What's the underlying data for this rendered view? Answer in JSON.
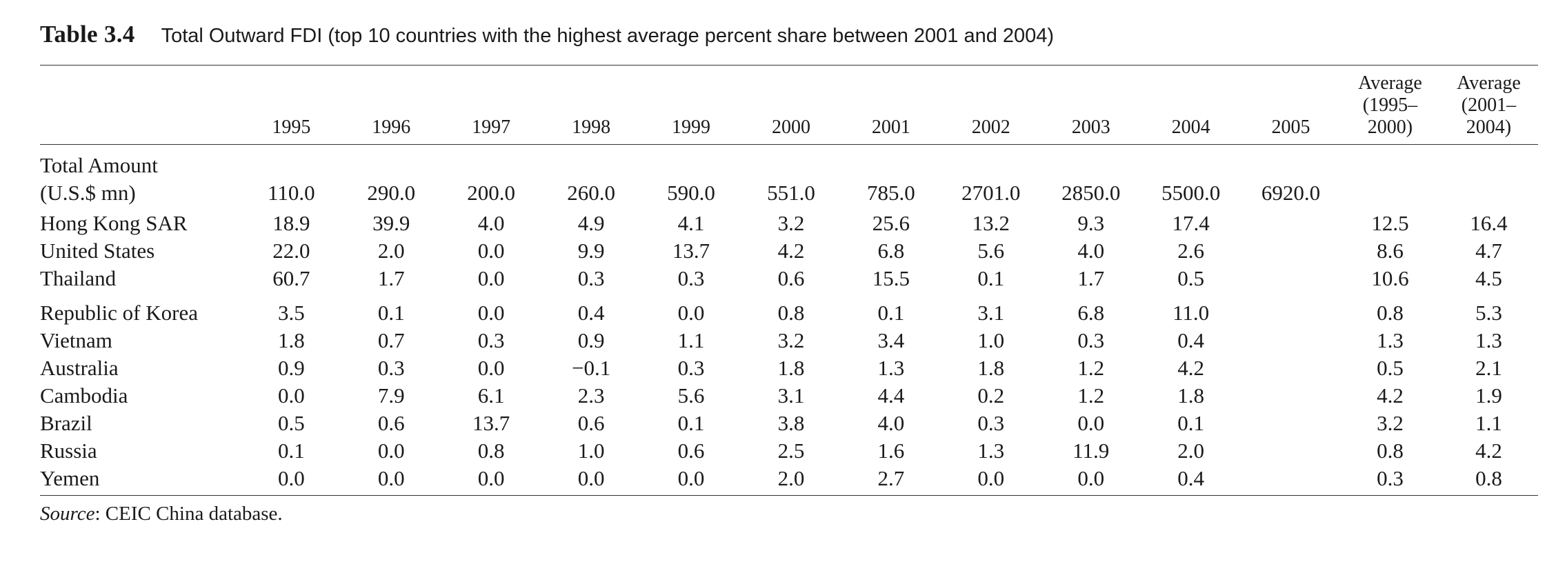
{
  "caption": {
    "label": "Table 3.4",
    "title": "Total Outward FDI (top 10 countries with the highest average percent share between 2001 and 2004)"
  },
  "headers": {
    "years": [
      "1995",
      "1996",
      "1997",
      "1998",
      "1999",
      "2000",
      "2001",
      "2002",
      "2003",
      "2004",
      "2005"
    ],
    "avg1": [
      "Average",
      "(1995–",
      "2000)"
    ],
    "avg2": [
      "Average",
      "(2001–",
      "2004)"
    ]
  },
  "total": {
    "label_line1": "Total Amount",
    "label_line2": "(U.S.$ mn)",
    "values": [
      "110.0",
      "290.0",
      "200.0",
      "260.0",
      "590.0",
      "551.0",
      "785.0",
      "2701.0",
      "2850.0",
      "5500.0",
      "6920.0"
    ]
  },
  "rows": [
    {
      "country": "Hong Kong SAR",
      "values": [
        "18.9",
        "39.9",
        "4.0",
        "4.9",
        "4.1",
        "3.2",
        "25.6",
        "13.2",
        "9.3",
        "17.4",
        ""
      ],
      "avg1": "12.5",
      "avg2": "16.4"
    },
    {
      "country": "United States",
      "values": [
        "22.0",
        "2.0",
        "0.0",
        "9.9",
        "13.7",
        "4.2",
        "6.8",
        "5.6",
        "4.0",
        "2.6",
        ""
      ],
      "avg1": "8.6",
      "avg2": "4.7"
    },
    {
      "country": "Thailand",
      "values": [
        "60.7",
        "1.7",
        "0.0",
        "0.3",
        "0.3",
        "0.6",
        "15.5",
        "0.1",
        "1.7",
        "0.5",
        ""
      ],
      "avg1": "10.6",
      "avg2": "4.5"
    },
    {
      "country": "Republic of Korea",
      "values": [
        "3.5",
        "0.1",
        "0.0",
        "0.4",
        "0.0",
        "0.8",
        "0.1",
        "3.1",
        "6.8",
        "11.0",
        ""
      ],
      "avg1": "0.8",
      "avg2": "5.3"
    },
    {
      "country": "Vietnam",
      "values": [
        "1.8",
        "0.7",
        "0.3",
        "0.9",
        "1.1",
        "3.2",
        "3.4",
        "1.0",
        "0.3",
        "0.4",
        ""
      ],
      "avg1": "1.3",
      "avg2": "1.3"
    },
    {
      "country": "Australia",
      "values": [
        "0.9",
        "0.3",
        "0.0",
        "−0.1",
        "0.3",
        "1.8",
        "1.3",
        "1.8",
        "1.2",
        "4.2",
        ""
      ],
      "avg1": "0.5",
      "avg2": "2.1"
    },
    {
      "country": "Cambodia",
      "values": [
        "0.0",
        "7.9",
        "6.1",
        "2.3",
        "5.6",
        "3.1",
        "4.4",
        "0.2",
        "1.2",
        "1.8",
        ""
      ],
      "avg1": "4.2",
      "avg2": "1.9"
    },
    {
      "country": "Brazil",
      "values": [
        "0.5",
        "0.6",
        "13.7",
        "0.6",
        "0.1",
        "3.8",
        "4.0",
        "0.3",
        "0.0",
        "0.1",
        ""
      ],
      "avg1": "3.2",
      "avg2": "1.1"
    },
    {
      "country": "Russia",
      "values": [
        "0.1",
        "0.0",
        "0.8",
        "1.0",
        "0.6",
        "2.5",
        "1.6",
        "1.3",
        "11.9",
        "2.0",
        ""
      ],
      "avg1": "0.8",
      "avg2": "4.2"
    },
    {
      "country": "Yemen",
      "values": [
        "0.0",
        "0.0",
        "0.0",
        "0.0",
        "0.0",
        "2.0",
        "2.7",
        "0.0",
        "0.0",
        "0.4",
        ""
      ],
      "avg1": "0.3",
      "avg2": "0.8"
    }
  ],
  "source": {
    "label": "Source",
    "text": ": CEIC China database."
  }
}
